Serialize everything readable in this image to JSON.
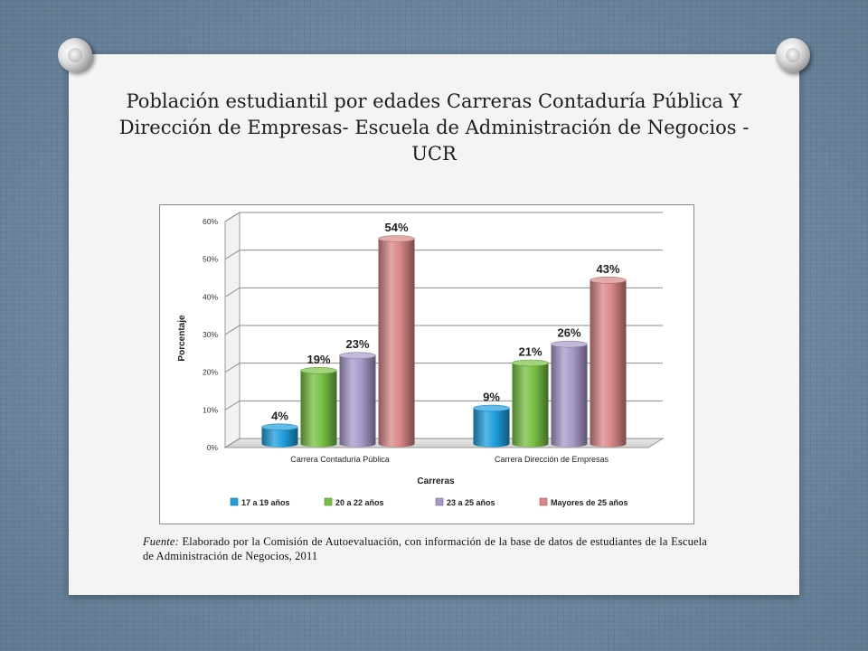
{
  "slide": {
    "title": "Población estudiantil por edades Carreras Contaduría Pública Y Dirección de Empresas- Escuela de Administración de Negocios - UCR",
    "source_label": "Fuente:",
    "source_text": " Elaborado por la Comisión de Autoevaluación, con información de la base de datos de estudiantes de la Escuela de Administración de Negocios, 2011"
  },
  "chart_data": {
    "type": "bar",
    "title": "",
    "xlabel": "Carreras",
    "ylabel": "Porcentaje",
    "ylim": [
      0,
      60
    ],
    "yticks": [
      "0%",
      "10%",
      "20%",
      "30%",
      "40%",
      "50%",
      "60%"
    ],
    "categories": [
      "Carrera  Contaduría Pública",
      "Carrera Dirección de Empresas"
    ],
    "series": [
      {
        "name": "17 a 19 años",
        "values": [
          4,
          9
        ],
        "labels": [
          "4%",
          "9%"
        ],
        "color": "#1e9ede"
      },
      {
        "name": "20 a 22 años",
        "values": [
          19,
          21
        ],
        "labels": [
          "19%",
          "21%"
        ],
        "color": "#77c043"
      },
      {
        "name": "23 a 25 años",
        "values": [
          23,
          26
        ],
        "labels": [
          "23%",
          "26%"
        ],
        "color": "#a899c9"
      },
      {
        "name": "Mayores de 25 años",
        "values": [
          54,
          43
        ],
        "labels": [
          "54%",
          "43%"
        ],
        "color": "#d98787"
      }
    ],
    "grid": true,
    "legend": "bottom",
    "style": "3d cylinder"
  }
}
